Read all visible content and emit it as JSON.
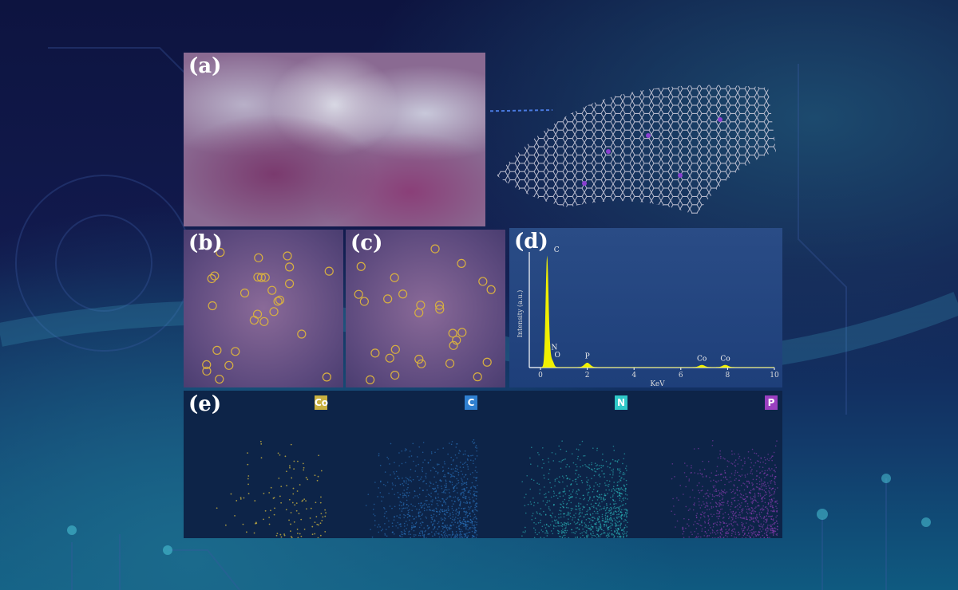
{
  "panels": {
    "a": "(a)",
    "b": "(b)",
    "c": "(c)",
    "d": "(d)",
    "e": "(e)"
  },
  "maps": [
    {
      "label": "Co",
      "color": "#c8b040"
    },
    {
      "label": "C",
      "color": "#2f7fd0"
    },
    {
      "label": "N",
      "color": "#2fc8c8"
    },
    {
      "label": "P",
      "color": "#9a3fc0"
    }
  ],
  "chart_data": {
    "type": "line",
    "title": "",
    "xlabel": "KeV",
    "ylabel": "Intensity (a.u.)",
    "xlim": [
      0,
      10
    ],
    "xticks": [
      0,
      2,
      4,
      6,
      8,
      10
    ],
    "ylim": [
      0,
      1.1
    ],
    "grid": false,
    "color": "#f0f000",
    "peaks": [
      {
        "label": "C",
        "x": 0.28,
        "y": 1.0
      },
      {
        "label": "N",
        "x": 0.39,
        "y": 0.12
      },
      {
        "label": "O",
        "x": 0.52,
        "y": 0.05
      },
      {
        "label": "P",
        "x": 2.0,
        "y": 0.04
      },
      {
        "label": "Co",
        "x": 6.9,
        "y": 0.02
      },
      {
        "label": "Co",
        "x": 7.9,
        "y": 0.02
      }
    ]
  }
}
